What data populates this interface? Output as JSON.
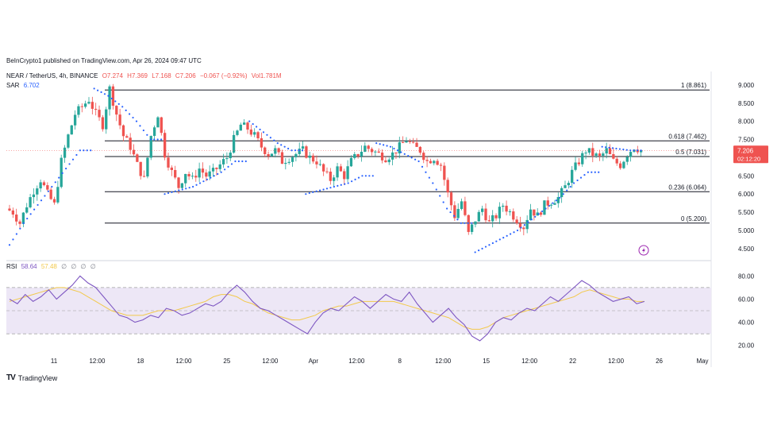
{
  "publisher": "BeInCrypto1 published on TradingView.com, Apr 26, 2024 09:47 UTC",
  "brand": "TradingView",
  "header": {
    "symbol": "NEAR / TetherUS, 4h, BINANCE",
    "open": "O7.274",
    "high": "H7.369",
    "low": "L7.168",
    "close": "C7.206",
    "change": "−0.067 (−0.92%)",
    "volume": "Vol1.781M",
    "sar_name": "SAR",
    "sar_value": "6.702",
    "rsi_name": "RSI",
    "rsi_value": "58.64",
    "rsi_ma": "57.48",
    "rsi_extra": [
      "∅",
      "∅",
      "∅",
      "∅"
    ]
  },
  "price_badge": {
    "price": "7.206",
    "countdown": "02:12:20"
  },
  "colors": {
    "up": "#26a69a",
    "down": "#ef5350",
    "sar": "#2962ff",
    "rsi": "#7e57c2",
    "rsi_ma": "#f2c94c",
    "band": "#ede7f6"
  },
  "icons": {
    "alert": "lightning-bolt-icon",
    "logo": "tradingview-logo-icon"
  },
  "chart_data": {
    "type": "candlestick",
    "title": "NEAR / TetherUS, 4h, BINANCE",
    "y_ticks": [
      "9.000",
      "8.500",
      "8.000",
      "7.500",
      "7.000",
      "6.500",
      "6.000",
      "5.500",
      "5.000",
      "4.500"
    ],
    "ylim": [
      4.3,
      9.15
    ],
    "x_ticks": [
      "11",
      "12:00",
      "18",
      "12:00",
      "25",
      "12:00",
      "Apr",
      "12:00",
      "8",
      "12:00",
      "15",
      "12:00",
      "22",
      "12:00",
      "26",
      "May"
    ],
    "fib_levels": [
      {
        "label": "1 (8.861)",
        "value": 8.861
      },
      {
        "label": "0.618 (7.462)",
        "value": 7.462
      },
      {
        "label": "0.5 (7.031)",
        "value": 7.031
      },
      {
        "label": "0.236 (6.064)",
        "value": 6.064
      },
      {
        "label": "0 (5.200)",
        "value": 5.2
      }
    ],
    "price_path": [
      5.6,
      5.5,
      5.2,
      5.7,
      6.1,
      6.4,
      6.0,
      5.7,
      6.9,
      7.6,
      8.2,
      8.4,
      8.6,
      8.2,
      7.9,
      8.9,
      8.2,
      7.6,
      7.3,
      6.8,
      6.4,
      7.6,
      8.2,
      7.1,
      6.6,
      6.2,
      6.6,
      6.4,
      6.7,
      6.5,
      6.6,
      6.8,
      7.0,
      7.5,
      7.9,
      7.8,
      7.6,
      7.3,
      7.1,
      7.2,
      6.9,
      7.0,
      7.1,
      7.2,
      7.0,
      6.9,
      6.6,
      6.4,
      6.7,
      6.5,
      6.9,
      7.1,
      7.3,
      7.2,
      7.1,
      7.0,
      7.1,
      7.3,
      7.5,
      7.3,
      7.2,
      6.9,
      7.0,
      6.8,
      6.0,
      5.4,
      5.8,
      4.9,
      5.3,
      5.6,
      5.2,
      5.4,
      5.7,
      5.5,
      5.3,
      5.1,
      5.6,
      5.4,
      5.7,
      5.8,
      5.9,
      6.2,
      6.6,
      6.9,
      7.2,
      7.1,
      7.0,
      7.2,
      6.9,
      6.8,
      7.1,
      7.3,
      7.2
    ],
    "candles_per_step": 2,
    "sar_segments": [
      {
        "side": "below",
        "path": [
          4.6,
          5.2,
          5.7,
          6.2,
          6.7,
          7.2
        ]
      },
      {
        "side": "above",
        "path": [
          8.9,
          8.7,
          8.4,
          8.0,
          7.5
        ]
      },
      {
        "side": "below",
        "path": [
          6.0,
          6.1,
          6.2,
          6.4,
          6.6,
          6.9
        ]
      },
      {
        "side": "above",
        "path": [
          8.0,
          7.7,
          7.4,
          7.2
        ]
      },
      {
        "side": "below",
        "path": [
          6.0,
          6.1,
          6.2,
          6.3,
          6.5
        ]
      },
      {
        "side": "above",
        "path": [
          7.4,
          7.3,
          7.1,
          6.9,
          6.3,
          5.6,
          5.2
        ]
      },
      {
        "side": "below",
        "path": [
          4.4,
          4.6,
          4.8,
          5.0,
          5.3,
          5.6,
          5.9,
          6.3,
          6.6
        ]
      },
      {
        "side": "above",
        "path": [
          7.3,
          7.25,
          7.2
        ]
      }
    ],
    "rsi": {
      "y_ticks": [
        "80.00",
        "60.00",
        "40.00",
        "20.00"
      ],
      "ylim": [
        15,
        85
      ],
      "band": [
        30,
        70
      ],
      "mid": 50,
      "values": [
        60,
        56,
        64,
        58,
        62,
        68,
        60,
        66,
        72,
        80,
        74,
        70,
        62,
        54,
        46,
        44,
        40,
        42,
        46,
        44,
        52,
        50,
        46,
        48,
        52,
        56,
        54,
        58,
        66,
        72,
        66,
        58,
        52,
        50,
        46,
        42,
        38,
        34,
        30,
        40,
        48,
        52,
        50,
        56,
        62,
        58,
        52,
        58,
        64,
        60,
        58,
        66,
        56,
        48,
        40,
        46,
        52,
        44,
        38,
        28,
        24,
        30,
        40,
        44,
        42,
        48,
        52,
        50,
        56,
        62,
        58,
        64,
        70,
        76,
        72,
        66,
        62,
        58,
        60,
        62,
        56,
        58
      ],
      "ma": [
        58,
        60,
        62,
        64,
        66,
        68,
        70,
        70,
        68,
        66,
        62,
        58,
        54,
        50,
        48,
        46,
        46,
        46,
        48,
        50,
        50,
        50,
        52,
        54,
        56,
        58,
        62,
        64,
        64,
        62,
        58,
        56,
        52,
        48,
        46,
        44,
        42,
        42,
        44,
        46,
        50,
        52,
        54,
        54,
        56,
        58,
        58,
        58,
        58,
        58,
        56,
        54,
        52,
        50,
        48,
        46,
        44,
        40,
        36,
        34,
        34,
        36,
        40,
        44,
        46,
        48,
        50,
        52,
        54,
        56,
        58,
        60,
        62,
        66,
        68,
        66,
        64,
        62,
        60,
        60,
        58,
        58
      ]
    }
  }
}
